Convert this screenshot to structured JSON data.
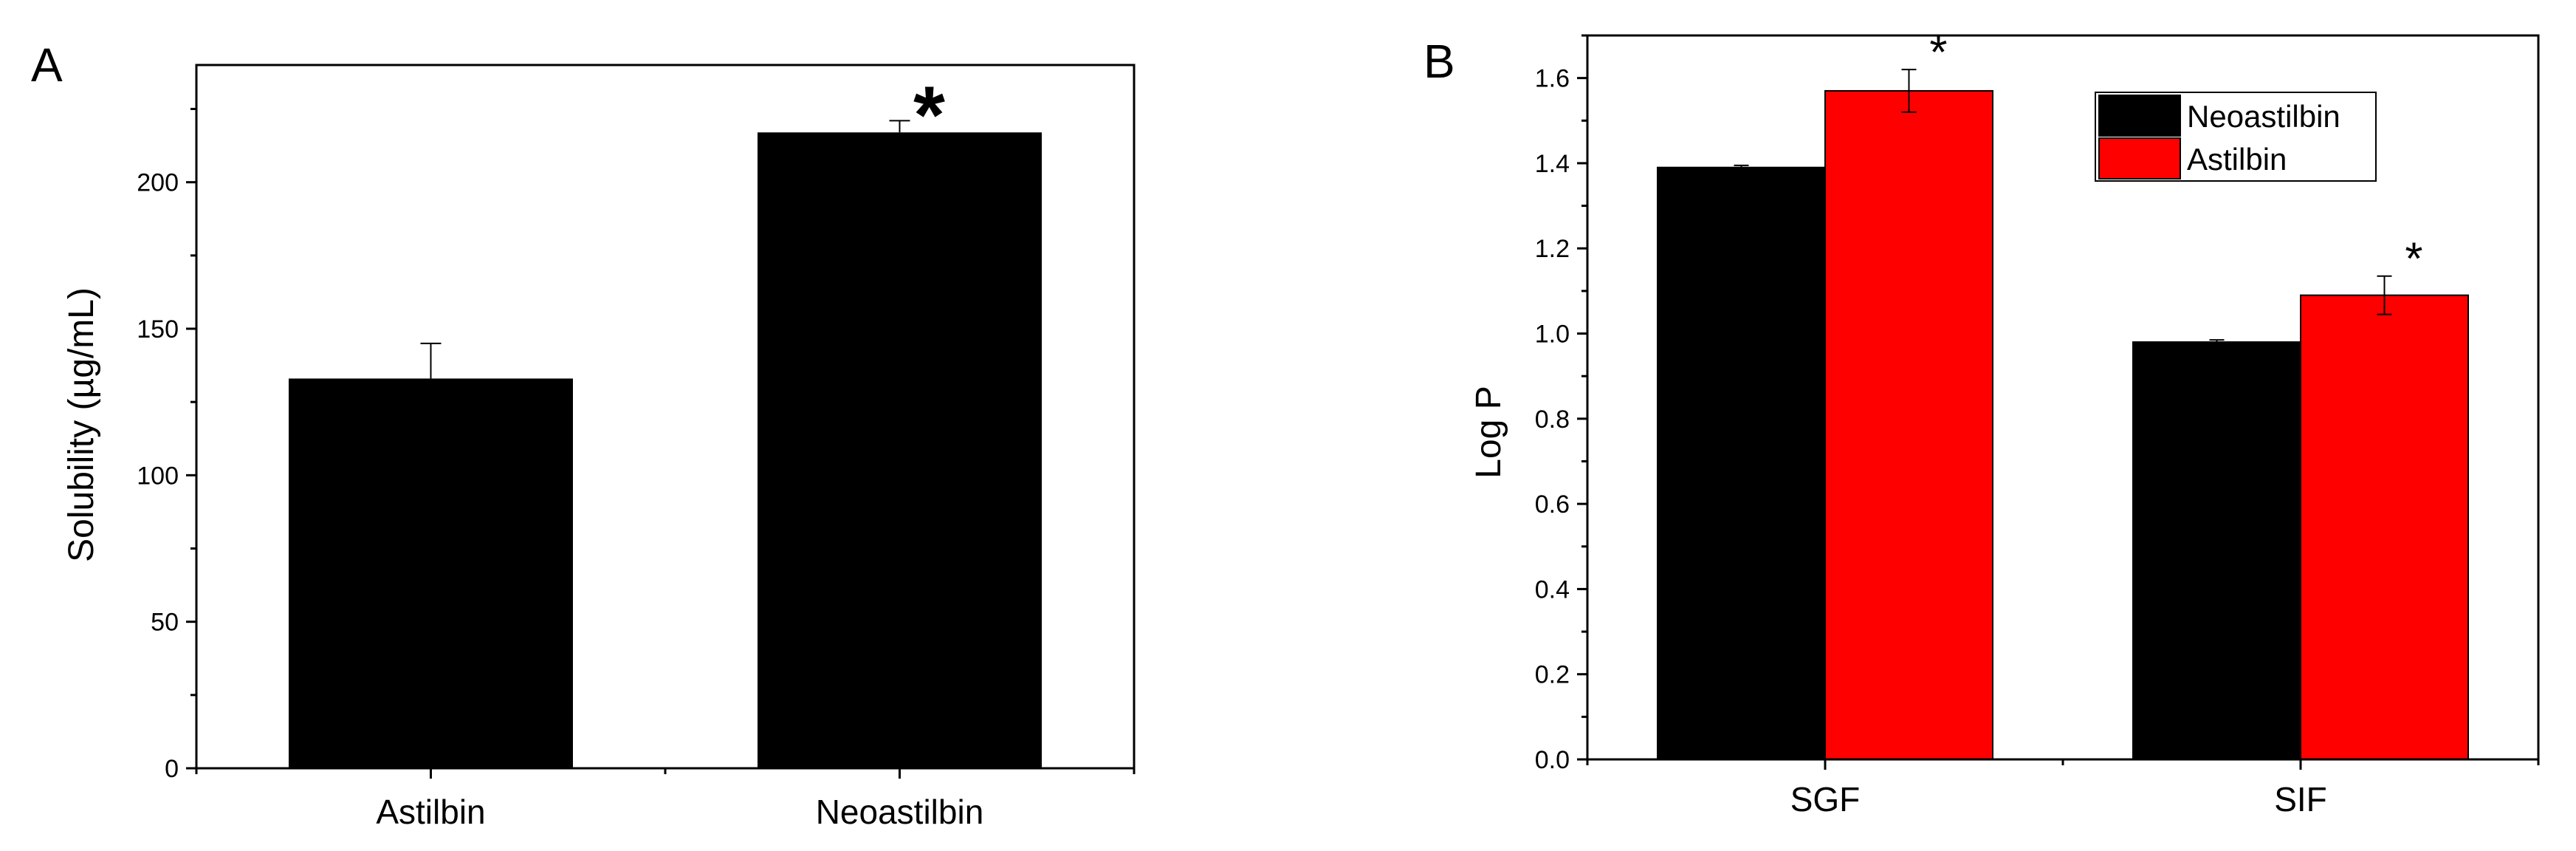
{
  "chart_data": [
    {
      "type": "bar",
      "panel_label": "A",
      "categories": [
        "Astilbin",
        "Neoastilbin"
      ],
      "values": [
        133,
        217
      ],
      "error": [
        12,
        4
      ],
      "ylabel": "Solubility (µg/mL)",
      "xlabel": "",
      "ylim": [
        0,
        240
      ],
      "yticks": [
        0,
        50,
        100,
        150,
        200
      ],
      "annotations": [
        {
          "category": "Neoastilbin",
          "text": "*"
        }
      ],
      "grid": false,
      "colors": {
        "bar": "#000000"
      }
    },
    {
      "type": "bar",
      "panel_label": "B",
      "categories": [
        "SGF",
        "SIF"
      ],
      "series": [
        {
          "name": "Neoastilbin",
          "values": [
            1.39,
            0.98
          ],
          "error": [
            0.005,
            0.005
          ],
          "color": "#000000"
        },
        {
          "name": "Astilbin",
          "values": [
            1.57,
            1.09
          ],
          "error": [
            0.05,
            0.045
          ],
          "color": "#ff0000"
        }
      ],
      "ylabel": "Log P",
      "xlabel": "",
      "ylim": [
        0,
        1.7
      ],
      "yticks": [
        "0.0",
        "0.2",
        "0.4",
        "0.6",
        "0.8",
        "1.0",
        "1.2",
        "1.4",
        "1.6"
      ],
      "annotations": [
        {
          "category": "SGF",
          "series": "Astilbin",
          "text": "*"
        },
        {
          "category": "SIF",
          "series": "Astilbin",
          "text": "*"
        }
      ],
      "legend": "top-right",
      "grid": false
    }
  ]
}
